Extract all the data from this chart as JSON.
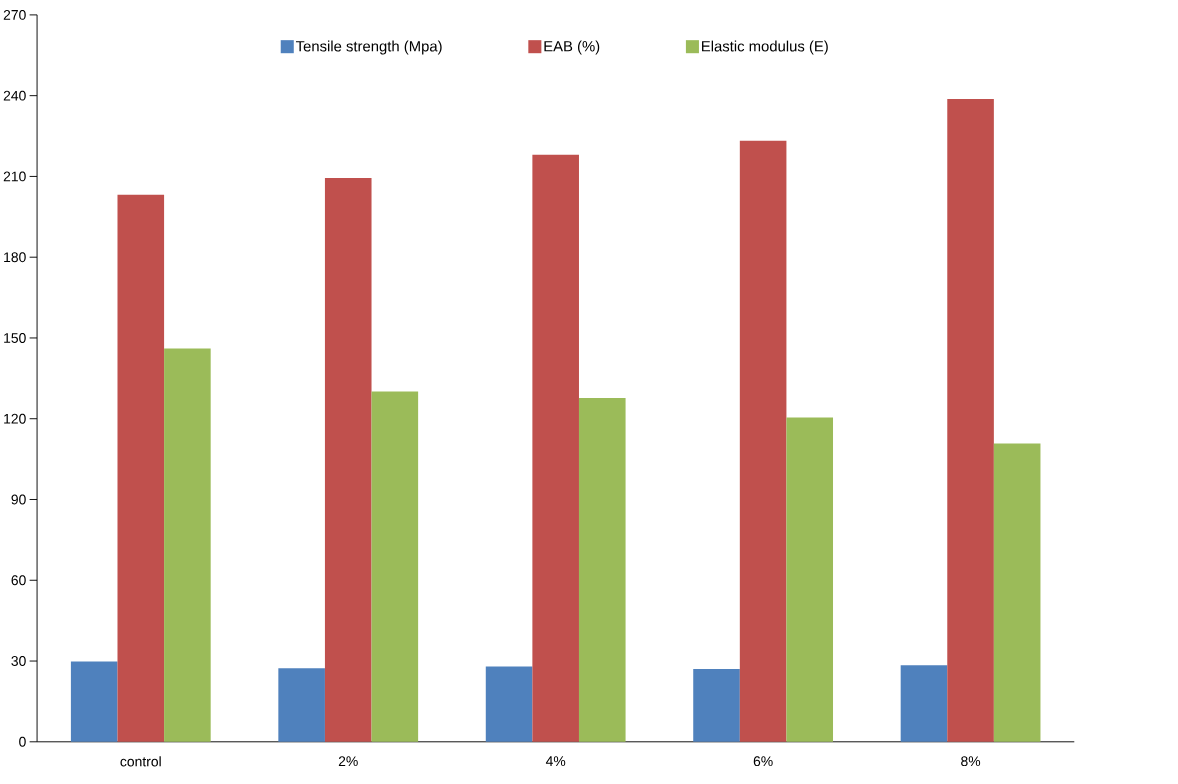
{
  "chart_data": {
    "type": "bar",
    "categories": [
      "control",
      "2%",
      "4%",
      "6%",
      "8%"
    ],
    "series": [
      {
        "name": "Tensile strength (Mpa)",
        "color": "#4f81bd",
        "values": [
          29.8,
          27.3,
          28.0,
          27.0,
          28.4
        ]
      },
      {
        "name": "EAB (%)",
        "color": "#c0504d",
        "values": [
          203.2,
          209.4,
          218.1,
          223.3,
          238.8
        ]
      },
      {
        "name": "Elastic modulus (E)",
        "color": "#9bbb59",
        "values": [
          146.1,
          130.1,
          127.7,
          120.5,
          110.8
        ]
      }
    ],
    "ylim": [
      0,
      270
    ],
    "yticks": [
      0,
      30,
      60,
      90,
      120,
      150,
      180,
      210,
      240,
      270
    ],
    "grid": false,
    "legend": "top"
  }
}
